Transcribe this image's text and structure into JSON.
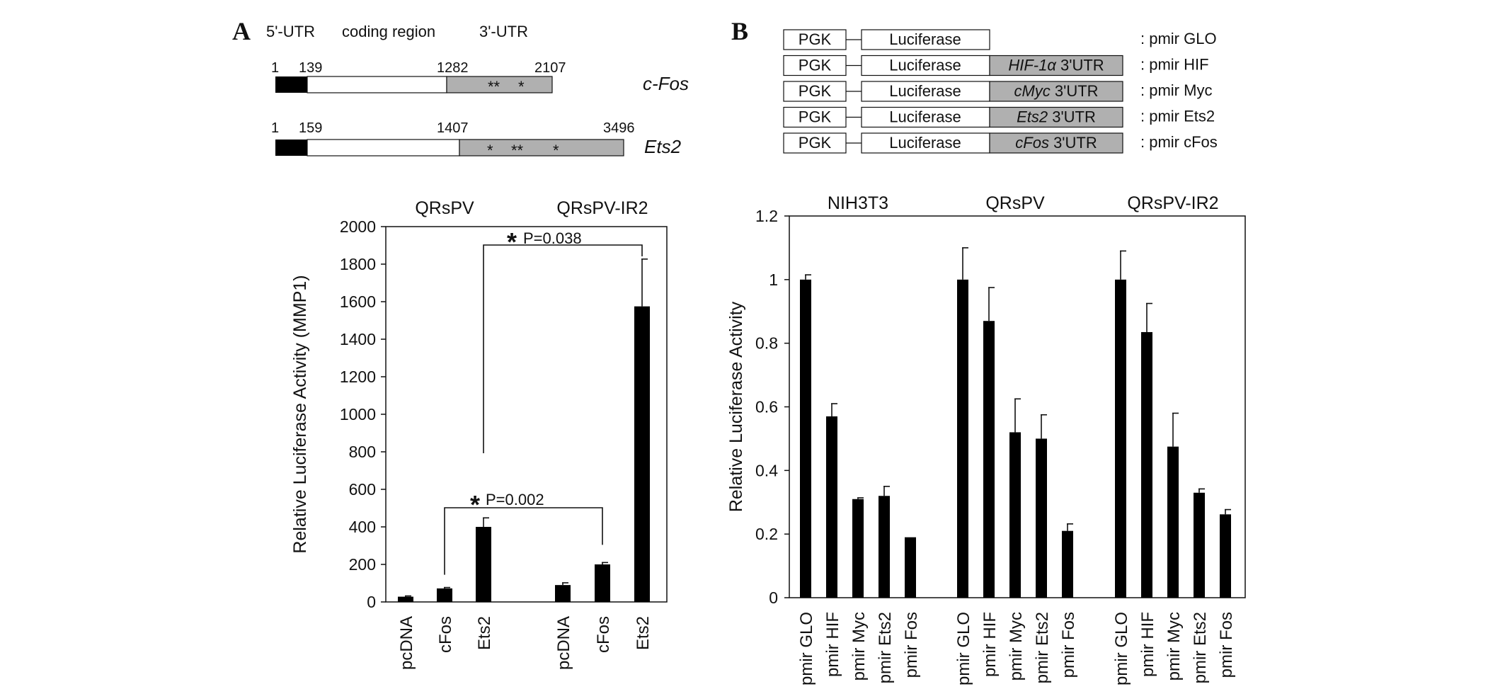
{
  "panel_a": {
    "letter": "A",
    "region_labels": [
      "5'-UTR",
      "coding region",
      "3'-UTR"
    ],
    "genes": [
      {
        "name": "c-Fos",
        "positions": [
          "1",
          "139",
          "1282",
          "2107"
        ],
        "stars": [
          "**",
          "*"
        ]
      },
      {
        "name": "Ets2",
        "positions": [
          "1",
          "159",
          "1407",
          "3496"
        ],
        "stars": [
          "*",
          "**",
          "*"
        ]
      }
    ]
  },
  "panel_b": {
    "letter": "B",
    "constructs": [
      {
        "promoter": "PGK",
        "reporter": "Luciferase",
        "utr_gene": "",
        "utr_suffix": "",
        "name": ": pmir GLO"
      },
      {
        "promoter": "PGK",
        "reporter": "Luciferase",
        "utr_gene": "HIF-1",
        "utr_greek": "α",
        "utr_suffix": " 3'UTR",
        "name": ": pmir HIF"
      },
      {
        "promoter": "PGK",
        "reporter": "Luciferase",
        "utr_gene": "cMyc",
        "utr_suffix": " 3'UTR",
        "name": ": pmir Myc"
      },
      {
        "promoter": "PGK",
        "reporter": "Luciferase",
        "utr_gene": "Ets2",
        "utr_suffix": " 3'UTR",
        "name": ": pmir Ets2"
      },
      {
        "promoter": "PGK",
        "reporter": "Luciferase",
        "utr_gene": "cFos",
        "utr_suffix": " 3'UTR",
        "name": ": pmir cFos"
      }
    ]
  },
  "chart_data": [
    {
      "type": "bar",
      "panel": "A",
      "ylabel": "Relative Luciferase Activity (MMP1)",
      "ylim": [
        0,
        2000
      ],
      "yticks": [
        0,
        200,
        400,
        600,
        800,
        1000,
        1200,
        1400,
        1600,
        1800,
        2000
      ],
      "groups": [
        "QRsPV",
        "QRsPV-IR2"
      ],
      "categories": [
        "pcDNA",
        "cFos",
        "Ets2",
        "pcDNA",
        "cFos",
        "Ets2"
      ],
      "values": [
        28,
        72,
        400,
        90,
        200,
        1575
      ],
      "errors": [
        4,
        5,
        48,
        12,
        10,
        252
      ],
      "significance": [
        {
          "text": "P=0.002",
          "from": 1,
          "to": 4,
          "star": "*"
        },
        {
          "text": "P=0.038",
          "from": 2,
          "to": 5,
          "star": "*"
        }
      ],
      "bar_color": "#000000"
    },
    {
      "type": "bar",
      "panel": "B",
      "ylabel": "Relative Luciferase Activity",
      "ylim": [
        0,
        1.2
      ],
      "yticks": [
        "0",
        "0.2",
        "0.4",
        "0.6",
        "0.8",
        "1",
        "1.2"
      ],
      "groups": [
        "NIH3T3",
        "QRsPV",
        "QRsPV-IR2"
      ],
      "categories": [
        "pmir GLO",
        "pmir HIF",
        "pmir Myc",
        "pmir Ets2",
        "pmir Fos"
      ],
      "series": [
        {
          "group": "NIH3T3",
          "values": [
            1.0,
            0.57,
            0.31,
            0.32,
            0.19
          ],
          "errors": [
            0.015,
            0.04,
            0.004,
            0.03,
            0.0
          ]
        },
        {
          "group": "QRsPV",
          "values": [
            1.0,
            0.87,
            0.52,
            0.5,
            0.21
          ],
          "errors": [
            0.1,
            0.105,
            0.105,
            0.075,
            0.022
          ]
        },
        {
          "group": "QRsPV-IR2",
          "values": [
            1.0,
            0.835,
            0.475,
            0.33,
            0.262
          ],
          "errors": [
            0.09,
            0.09,
            0.105,
            0.012,
            0.015
          ]
        }
      ],
      "bar_color": "#000000"
    }
  ]
}
